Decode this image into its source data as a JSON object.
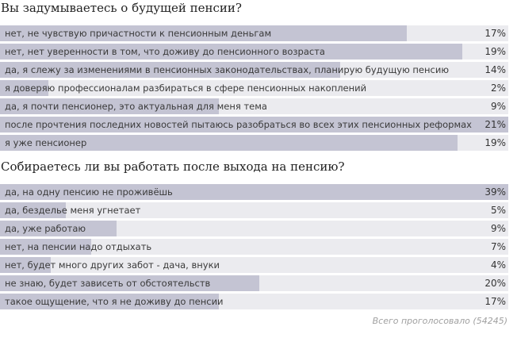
{
  "polls": [
    {
      "question": "Вы задумываетесь о будущей пенсии?",
      "options": [
        {
          "label": "нет, не чувствую причастности к пенсионным деньгам",
          "percent": "17%",
          "fill": 0.8
        },
        {
          "label": "нет, нет уверенности в том, что доживу до пенсионного возраста",
          "percent": "19%",
          "fill": 0.91
        },
        {
          "label": "да, я слежу за изменениями в пенсионных законодательствах, планирую будущую пенсию",
          "percent": "14%",
          "fill": 0.67
        },
        {
          "label": "я доверяю профессионалам разбираться в сфере пенсионных накоплений",
          "percent": "2%",
          "fill": 0.095
        },
        {
          "label": "да, я почти пенсионер, это актуальная для меня тема",
          "percent": "9%",
          "fill": 0.43
        },
        {
          "label": "после прочтения последних новостей пытаюсь разобраться во всех этих пенсионных реформах",
          "percent": "21%",
          "fill": 1.0
        },
        {
          "label": "я уже пенсионер",
          "percent": "19%",
          "fill": 0.9
        }
      ]
    },
    {
      "question": "Собираетесь ли вы работать после выхода на пенсию?",
      "options": [
        {
          "label": "да, на одну пенсию не проживёшь",
          "percent": "39%",
          "fill": 1.0
        },
        {
          "label": "да, безделье меня угнетает",
          "percent": "5%",
          "fill": 0.13
        },
        {
          "label": "да, уже работаю",
          "percent": "9%",
          "fill": 0.23
        },
        {
          "label": "нет, на пенсии надо отдыхать",
          "percent": "7%",
          "fill": 0.18
        },
        {
          "label": "нет, будет много других забот - дача, внуки",
          "percent": "4%",
          "fill": 0.1
        },
        {
          "label": "не знаю, будет зависеть от обстоятельств",
          "percent": "20%",
          "fill": 0.51
        },
        {
          "label": "такое ощущение, что я не доживу до пенсии",
          "percent": "17%",
          "fill": 0.43
        }
      ]
    }
  ],
  "total_votes": "Всего проголосовало (54245)",
  "colors": {
    "bar_fill": "#c4c4d3",
    "bar_track": "#ebebef",
    "footer_text": "#a0a0a0"
  }
}
